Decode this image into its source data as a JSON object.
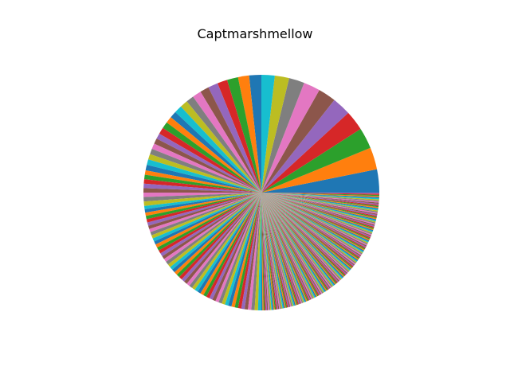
{
  "chart_data": {
    "type": "pie",
    "title": "Captmarshmellow",
    "start_angle_deg": 0,
    "direction": "counterclockwise",
    "palette": [
      "#1f77b4",
      "#ff7f0e",
      "#2ca02c",
      "#d62728",
      "#9467bd",
      "#8c564b",
      "#e377c2",
      "#7f7f7f",
      "#bcbd22",
      "#17becf"
    ],
    "tail_slice_count": 165,
    "tail_slice_value": 1,
    "values": [
      21,
      20,
      19,
      18,
      17,
      16,
      15,
      14,
      13,
      12,
      11,
      10,
      10,
      9,
      9,
      8,
      8,
      7,
      7,
      7,
      6,
      6,
      6,
      6,
      5,
      5,
      5,
      5,
      5,
      5,
      5,
      4,
      4,
      4,
      4,
      4,
      4,
      4,
      4,
      3,
      3,
      3,
      3,
      3,
      3,
      3,
      3,
      3,
      3,
      3,
      3,
      3,
      3,
      3,
      3,
      3,
      3,
      3,
      3,
      3,
      3,
      3,
      3,
      3,
      3,
      3,
      3,
      3,
      3,
      3,
      3,
      3,
      3,
      3,
      3,
      3,
      3,
      3,
      3,
      3,
      3,
      3,
      3,
      3,
      3,
      3,
      3,
      3,
      3,
      3
    ]
  }
}
